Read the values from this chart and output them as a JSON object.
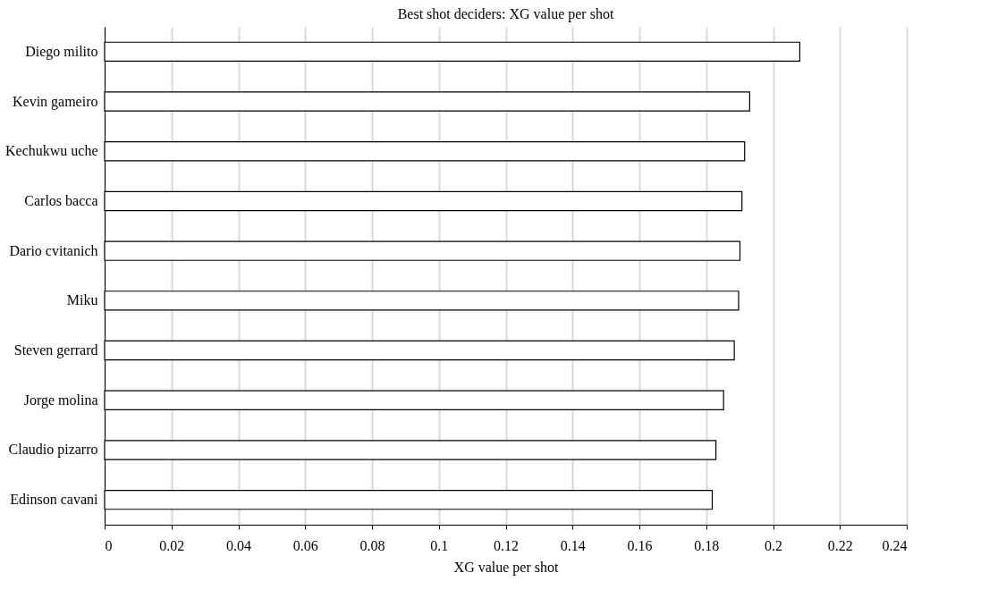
{
  "chart_data": {
    "type": "bar",
    "orientation": "horizontal",
    "title": "Best shot deciders: XG value per shot",
    "xlabel": "XG value per shot",
    "categories": [
      "Diego milito",
      "Kevin gameiro",
      "Kechukwu uche",
      "Carlos bacca",
      "Dario cvitanich",
      "Miku",
      "Steven gerrard",
      "Jorge molina",
      "Claudio pizarro",
      "Edinson cavani"
    ],
    "values": [
      0.208,
      0.193,
      0.1915,
      0.1907,
      0.1901,
      0.1897,
      0.1884,
      0.1852,
      0.1829,
      0.1818
    ],
    "color": "#ffffff",
    "xlim": [
      0,
      0.24
    ],
    "xticks": [
      0,
      0.02,
      0.04,
      0.06,
      0.08,
      0.1,
      0.12,
      0.14,
      0.16,
      0.18,
      0.2,
      0.22,
      0.24
    ],
    "grid": "x"
  }
}
